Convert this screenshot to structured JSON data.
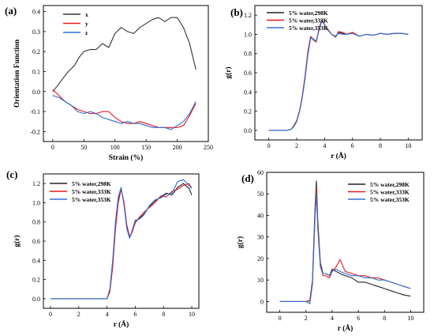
{
  "chart_data": [
    {
      "panel": "(a)",
      "type": "line",
      "xlabel": "Strain (%)",
      "ylabel": "Orientation Function",
      "xlim": [
        -15,
        250
      ],
      "ylim": [
        -0.25,
        0.43
      ],
      "xticks": [
        0,
        50,
        100,
        150,
        200,
        250
      ],
      "yticks": [
        -0.2,
        -0.1,
        0.0,
        0.1,
        0.2,
        0.3,
        0.4
      ],
      "ytick_labels": [
        "-0.2",
        "-0.1",
        "0.0",
        "0.1",
        "0.2",
        "0.3",
        "0.4"
      ],
      "legend_position": "top-left",
      "series": [
        {
          "name": "x",
          "color": "#333333",
          "x": [
            0,
            8,
            15,
            25,
            35,
            42,
            50,
            60,
            70,
            80,
            90,
            100,
            110,
            120,
            130,
            140,
            150,
            160,
            170,
            180,
            190,
            200,
            210,
            220,
            230
          ],
          "y": [
            0.0,
            0.03,
            0.06,
            0.1,
            0.13,
            0.17,
            0.2,
            0.21,
            0.21,
            0.24,
            0.22,
            0.29,
            0.32,
            0.3,
            0.29,
            0.32,
            0.34,
            0.36,
            0.37,
            0.35,
            0.37,
            0.37,
            0.32,
            0.24,
            0.11
          ]
        },
        {
          "name": "y",
          "color": "#e8191b",
          "x": [
            0,
            10,
            20,
            30,
            40,
            50,
            60,
            70,
            80,
            90,
            100,
            110,
            120,
            130,
            140,
            150,
            160,
            170,
            180,
            190,
            200,
            210,
            220,
            230
          ],
          "y": [
            0.01,
            -0.02,
            -0.05,
            -0.07,
            -0.09,
            -0.1,
            -0.11,
            -0.11,
            -0.1,
            -0.1,
            -0.13,
            -0.15,
            -0.16,
            -0.16,
            -0.15,
            -0.16,
            -0.17,
            -0.18,
            -0.18,
            -0.18,
            -0.18,
            -0.17,
            -0.12,
            -0.06
          ]
        },
        {
          "name": "z",
          "color": "#2e6fd8",
          "x": [
            0,
            10,
            20,
            30,
            40,
            50,
            60,
            70,
            80,
            90,
            100,
            110,
            120,
            130,
            140,
            150,
            160,
            170,
            180,
            190,
            200,
            210,
            220,
            230
          ],
          "y": [
            -0.02,
            -0.03,
            -0.05,
            -0.07,
            -0.1,
            -0.11,
            -0.1,
            -0.11,
            -0.13,
            -0.14,
            -0.15,
            -0.16,
            -0.15,
            -0.16,
            -0.16,
            -0.17,
            -0.18,
            -0.18,
            -0.18,
            -0.19,
            -0.17,
            -0.15,
            -0.11,
            -0.05
          ]
        }
      ]
    },
    {
      "panel": "(b)",
      "type": "line",
      "xlabel": "r (Å)",
      "ylabel": "g(r)",
      "xlim": [
        -1,
        11
      ],
      "ylim": [
        -0.1,
        1.3
      ],
      "xticks": [
        0,
        2,
        4,
        6,
        8,
        10
      ],
      "yticks": [
        0.0,
        0.2,
        0.4,
        0.6,
        0.8,
        1.0,
        1.2
      ],
      "ytick_labels": [
        "0.0",
        "0.2",
        "0.4",
        "0.6",
        "0.8",
        "1.0",
        "1.2"
      ],
      "legend_position": "top-left",
      "series": [
        {
          "name": "5% water,298K",
          "color": "#222222",
          "x": [
            0,
            1.3,
            1.6,
            1.8,
            2.0,
            2.2,
            2.4,
            2.6,
            2.8,
            3.0,
            3.2,
            3.4,
            3.6,
            3.8,
            4.0,
            4.2,
            4.5,
            4.8,
            5.0,
            5.3,
            5.6,
            6.0,
            6.5,
            7.0,
            7.5,
            8.0,
            8.5,
            9.0,
            9.5,
            10.0
          ],
          "y": [
            0.0,
            0.0,
            0.01,
            0.05,
            0.1,
            0.2,
            0.35,
            0.55,
            0.8,
            0.97,
            0.95,
            0.92,
            1.05,
            1.15,
            1.1,
            1.05,
            1.0,
            0.98,
            1.02,
            1.01,
            1.0,
            1.02,
            0.98,
            1.0,
            0.99,
            1.01,
            1.0,
            1.01,
            1.01,
            1.0
          ]
        },
        {
          "name": "5% water,333K",
          "color": "#e8191b",
          "x": [
            0,
            1.3,
            1.6,
            1.8,
            2.0,
            2.2,
            2.4,
            2.6,
            2.8,
            3.0,
            3.2,
            3.4,
            3.6,
            3.8,
            4.0,
            4.2,
            4.5,
            4.8,
            5.0,
            5.3,
            5.6,
            6.0,
            6.5,
            7.0,
            7.5,
            8.0,
            8.5,
            9.0,
            9.5,
            10.0
          ],
          "y": [
            0.0,
            0.0,
            0.01,
            0.05,
            0.1,
            0.2,
            0.36,
            0.57,
            0.82,
            0.98,
            0.94,
            0.92,
            1.06,
            1.15,
            1.1,
            1.06,
            1.0,
            0.97,
            1.03,
            1.02,
            1.0,
            1.02,
            0.98,
            1.0,
            0.99,
            1.01,
            1.0,
            1.01,
            1.01,
            1.0
          ]
        },
        {
          "name": "5% water,353K",
          "color": "#2e6fd8",
          "x": [
            0,
            1.3,
            1.6,
            1.8,
            2.0,
            2.2,
            2.4,
            2.6,
            2.8,
            3.0,
            3.2,
            3.4,
            3.6,
            3.8,
            4.0,
            4.2,
            4.5,
            4.8,
            5.0,
            5.3,
            5.6,
            6.0,
            6.5,
            7.0,
            7.5,
            8.0,
            8.5,
            9.0,
            9.5,
            10.0
          ],
          "y": [
            0.0,
            0.0,
            0.01,
            0.04,
            0.09,
            0.19,
            0.34,
            0.54,
            0.78,
            0.96,
            0.95,
            0.93,
            1.04,
            1.14,
            1.1,
            1.05,
            1.0,
            0.98,
            1.01,
            1.0,
            1.0,
            1.01,
            0.98,
            1.0,
            0.99,
            1.01,
            1.0,
            1.01,
            1.01,
            1.0
          ]
        }
      ]
    },
    {
      "panel": "(c)",
      "type": "line",
      "xlabel": "r (Å)",
      "ylabel": "g(r)",
      "xlim": [
        -0.5,
        10.5
      ],
      "ylim": [
        -0.1,
        1.3
      ],
      "xticks": [
        0,
        2,
        4,
        6,
        8,
        10
      ],
      "yticks": [
        0.0,
        0.2,
        0.4,
        0.6,
        0.8,
        1.0,
        1.2
      ],
      "ytick_labels": [
        "0.0",
        "0.2",
        "0.4",
        "0.6",
        "0.8",
        "1.0",
        "1.2"
      ],
      "legend_position": "top-left",
      "series": [
        {
          "name": "5% water,298K",
          "color": "#222222",
          "x": [
            0,
            4.0,
            4.2,
            4.4,
            4.6,
            4.8,
            5.0,
            5.2,
            5.4,
            5.6,
            5.8,
            6.0,
            6.3,
            6.6,
            7.0,
            7.4,
            7.8,
            8.2,
            8.6,
            9.0,
            9.4,
            9.8,
            10.0
          ],
          "y": [
            0.0,
            0.0,
            0.08,
            0.35,
            0.75,
            1.02,
            1.15,
            1.0,
            0.75,
            0.64,
            0.7,
            0.8,
            0.84,
            0.88,
            0.96,
            1.02,
            1.06,
            1.1,
            1.08,
            1.16,
            1.2,
            1.15,
            1.08
          ]
        },
        {
          "name": "5% water,333K",
          "color": "#e8191b",
          "x": [
            0,
            4.0,
            4.2,
            4.4,
            4.6,
            4.8,
            5.0,
            5.2,
            5.4,
            5.6,
            5.8,
            6.0,
            6.3,
            6.6,
            7.0,
            7.4,
            7.8,
            8.2,
            8.6,
            9.0,
            9.4,
            9.8,
            10.0
          ],
          "y": [
            0.0,
            0.0,
            0.07,
            0.33,
            0.72,
            1.0,
            1.14,
            1.01,
            0.77,
            0.65,
            0.7,
            0.79,
            0.85,
            0.9,
            0.95,
            1.0,
            1.07,
            1.06,
            1.12,
            1.14,
            1.18,
            1.2,
            1.15
          ]
        },
        {
          "name": "5% water,353K",
          "color": "#2e6fd8",
          "x": [
            0,
            4.0,
            4.2,
            4.4,
            4.6,
            4.8,
            5.0,
            5.2,
            5.4,
            5.6,
            5.8,
            6.0,
            6.3,
            6.6,
            7.0,
            7.4,
            7.8,
            8.2,
            8.6,
            9.0,
            9.4,
            9.8,
            10.0
          ],
          "y": [
            0.0,
            0.0,
            0.1,
            0.4,
            0.8,
            1.06,
            1.16,
            0.98,
            0.73,
            0.63,
            0.72,
            0.82,
            0.83,
            0.87,
            0.97,
            1.03,
            1.05,
            1.09,
            1.1,
            1.22,
            1.24,
            1.18,
            1.15
          ]
        }
      ]
    },
    {
      "panel": "(d)",
      "type": "line",
      "xlabel": "r (Å)",
      "ylabel": "g(r)",
      "xlim": [
        -1,
        11
      ],
      "ylim": [
        -5,
        60
      ],
      "xticks": [
        0,
        2,
        4,
        6,
        8,
        10
      ],
      "yticks": [
        0,
        10,
        20,
        30,
        40,
        50,
        60
      ],
      "ytick_labels": [
        "0",
        "10",
        "20",
        "30",
        "40",
        "50",
        "60"
      ],
      "legend_position": "top-right",
      "series": [
        {
          "name": "5% water,298K",
          "color": "#222222",
          "x": [
            0,
            2.0,
            2.3,
            2.5,
            2.7,
            2.8,
            2.9,
            3.1,
            3.3,
            3.5,
            3.8,
            4.0,
            4.3,
            4.6,
            5.0,
            5.5,
            6.0,
            6.5,
            7.0,
            7.5,
            8.0,
            8.5,
            9.0,
            9.5,
            10.0
          ],
          "y": [
            0,
            0,
            0.5,
            10,
            45,
            56,
            38,
            18,
            13,
            13,
            12,
            15,
            14,
            13,
            12,
            11,
            9,
            9,
            8,
            7,
            6,
            5,
            4,
            3,
            2.5
          ]
        },
        {
          "name": "5% water,333K",
          "color": "#e8191b",
          "x": [
            0,
            2.0,
            2.3,
            2.5,
            2.7,
            2.8,
            2.9,
            3.1,
            3.3,
            3.5,
            3.8,
            4.0,
            4.3,
            4.6,
            5.0,
            5.5,
            6.0,
            6.5,
            7.0,
            7.5,
            8.0,
            8.5,
            9.0,
            9.5,
            10.0
          ],
          "y": [
            0,
            0,
            0.3,
            9,
            43,
            53,
            36,
            17,
            12,
            12,
            11,
            14,
            16,
            19.5,
            14,
            13,
            12,
            12,
            11,
            11,
            10,
            9,
            8,
            7,
            6
          ]
        },
        {
          "name": "5% water,353K",
          "color": "#2e6fd8",
          "x": [
            0,
            2.0,
            2.3,
            2.5,
            2.7,
            2.8,
            2.9,
            3.1,
            3.3,
            3.5,
            3.8,
            4.0,
            4.3,
            4.6,
            5.0,
            5.5,
            6.0,
            6.5,
            7.0,
            7.5,
            8.0,
            8.5,
            9.0,
            9.5,
            10.0
          ],
          "y": [
            0,
            0,
            -1,
            8,
            40,
            50,
            34,
            16,
            13,
            13,
            12,
            14,
            15,
            14,
            13,
            12,
            12,
            11,
            11,
            10,
            10,
            9,
            8,
            7,
            6
          ]
        }
      ]
    }
  ]
}
